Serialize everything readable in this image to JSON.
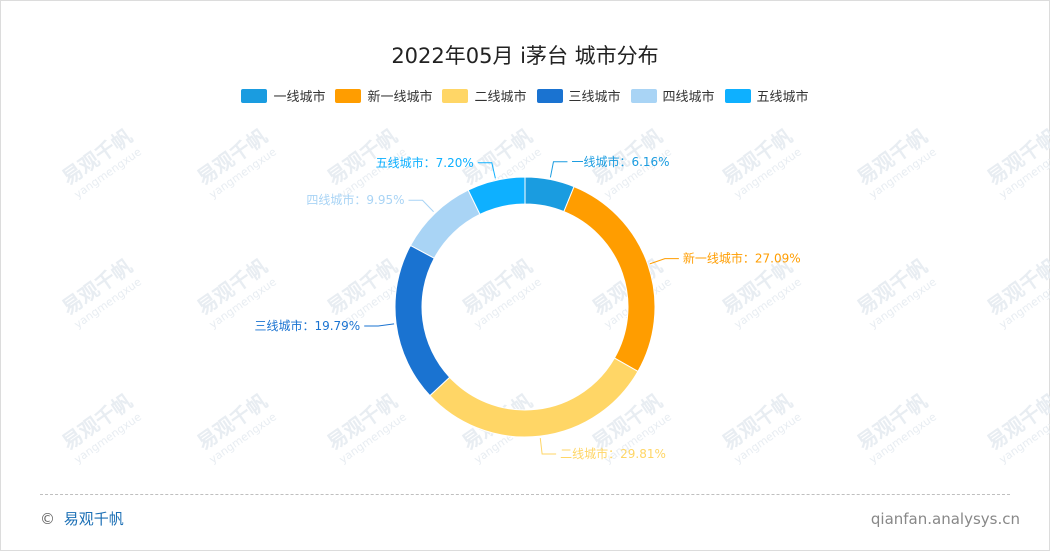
{
  "chart_data": {
    "type": "pie",
    "title": "2022年05月 i茅台 城市分布",
    "donut": true,
    "legend_position": "top",
    "categories": [
      "一线城市",
      "新一线城市",
      "二线城市",
      "三线城市",
      "四线城市",
      "五线城市"
    ],
    "values": [
      6.16,
      27.09,
      29.81,
      19.79,
      9.95,
      7.2
    ],
    "value_labels": [
      "6.16%",
      "27.09%",
      "29.81%",
      "19.79%",
      "9.95%",
      "7.20%"
    ],
    "colors": [
      "#1a9ce0",
      "#ff9d00",
      "#ffd666",
      "#1a73d1",
      "#a9d4f5",
      "#0eb0ff"
    ],
    "label_separator": "："
  },
  "watermark": {
    "text": "易观千帆",
    "sub": "yangmengxue"
  },
  "footer": {
    "copyright_symbol": "©",
    "brand": "易观千帆",
    "source": "qianfan.analysys.cn"
  }
}
